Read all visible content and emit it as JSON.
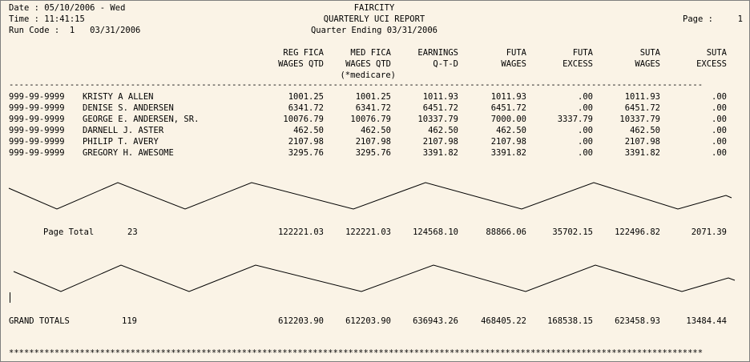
{
  "header": {
    "date_line": "Date : 05/10/2006 - Wed",
    "time_line": "Time : 11:41:15",
    "run_code_line": "Run Code :  1   03/31/2006",
    "company": "FAIRCITY",
    "report_title": "QUARTERLY UCI REPORT",
    "quarter_line": "Quarter Ending 03/31/2006",
    "page_label": "Page :",
    "page_number": "1"
  },
  "columns": [
    {
      "line1": "REG FICA",
      "line2": "WAGES QTD",
      "line3": ""
    },
    {
      "line1": "MED FICA",
      "line2": "WAGES QTD",
      "line3": "(*medicare)"
    },
    {
      "line1": "EARNINGS",
      "line2": "Q-T-D",
      "line3": ""
    },
    {
      "line1": "FUTA",
      "line2": "WAGES",
      "line3": ""
    },
    {
      "line1": "FUTA",
      "line2": "EXCESS",
      "line3": ""
    },
    {
      "line1": "SUTA",
      "line2": "WAGES",
      "line3": ""
    },
    {
      "line1": "SUTA",
      "line2": "EXCESS",
      "line3": ""
    }
  ],
  "separator": "-----------------------------------------------------------------------------------------------------------------------------------------",
  "rows": [
    {
      "ssn": "999-99-9999",
      "name": "KRISTY A ALLEN",
      "values": [
        "1001.25",
        "1001.25",
        "1011.93",
        "1011.93",
        ".00",
        "1011.93",
        ".00"
      ]
    },
    {
      "ssn": "999-99-9999",
      "name": "DENISE S. ANDERSEN",
      "values": [
        "6341.72",
        "6341.72",
        "6451.72",
        "6451.72",
        ".00",
        "6451.72",
        ".00"
      ]
    },
    {
      "ssn": "999-99-9999",
      "name": "GEORGE E. ANDERSEN, SR.",
      "values": [
        "10076.79",
        "10076.79",
        "10337.79",
        "7000.00",
        "3337.79",
        "10337.79",
        ".00"
      ]
    },
    {
      "ssn": "999-99-9999",
      "name": "DARNELL J. ASTER",
      "values": [
        "462.50",
        "462.50",
        "462.50",
        "462.50",
        ".00",
        "462.50",
        ".00"
      ]
    },
    {
      "ssn": "999-99-9999",
      "name": "PHILIP T. AVERY",
      "values": [
        "2107.98",
        "2107.98",
        "2107.98",
        "2107.98",
        ".00",
        "2107.98",
        ".00"
      ]
    },
    {
      "ssn": "999-99-9999",
      "name": "GREGORY H. AWESOME",
      "values": [
        "3295.76",
        "3295.76",
        "3391.82",
        "3391.82",
        ".00",
        "3391.82",
        ".00"
      ]
    }
  ],
  "page_total": {
    "label": "Page Total",
    "count": "23",
    "values": [
      "122221.03",
      "122221.03",
      "124568.10",
      "88866.06",
      "35702.15",
      "122496.82",
      "2071.39"
    ]
  },
  "grand_total": {
    "label": "GRAND TOTALS",
    "count": "119",
    "values": [
      "612203.90",
      "612203.90",
      "636943.26",
      "468405.22",
      "168538.15",
      "623458.93",
      "13484.44"
    ]
  },
  "footer_stars": "*****************************************************************************************************************************************"
}
